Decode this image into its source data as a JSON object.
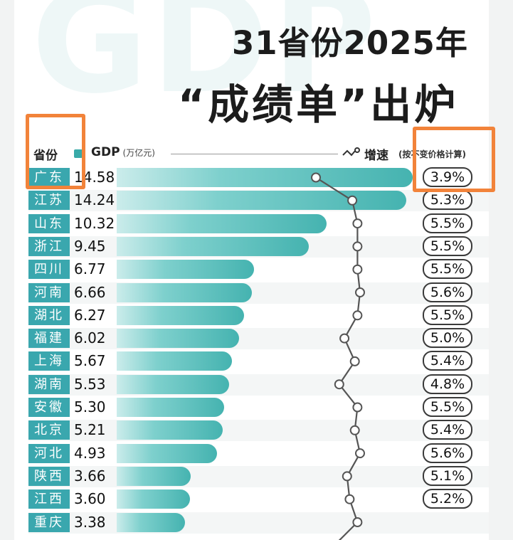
{
  "watermark": "GDP",
  "title": {
    "line1": "31省份2025年",
    "line2": "“成绩单”出炉"
  },
  "header": {
    "province_label": "省份",
    "gdp_label": "GDP",
    "gdp_unit": "(万亿元)",
    "growth_label": "增速",
    "growth_note": "(按不变价格计算)"
  },
  "colors": {
    "bar": "#45b3b0",
    "province_tag": "#3aa7ae",
    "highlight": "#f2833a"
  },
  "chart_data": {
    "type": "bar",
    "title": "31省份2025年“成绩单”出炉",
    "xlabel": "GDP(万亿元)",
    "ylabel": "省份",
    "categories": [
      "广东",
      "江苏",
      "山东",
      "浙江",
      "四川",
      "河南",
      "湖北",
      "福建",
      "上海",
      "湖南",
      "安徽",
      "北京",
      "河北",
      "陕西",
      "江西",
      "重庆"
    ],
    "series": [
      {
        "name": "GDP",
        "values": [
          14.58,
          14.24,
          10.32,
          9.45,
          6.77,
          6.66,
          6.27,
          6.02,
          5.67,
          5.53,
          5.3,
          5.21,
          4.93,
          3.66,
          3.6,
          3.38
        ]
      },
      {
        "name": "增速",
        "values": [
          3.9,
          5.3,
          5.5,
          5.5,
          5.5,
          5.6,
          5.5,
          5.0,
          5.4,
          4.8,
          5.5,
          5.4,
          5.6,
          5.1,
          5.2,
          5.5
        ]
      }
    ],
    "gdp_labels": [
      "14.58",
      "14.24",
      "10.32",
      "9.45",
      "6.77",
      "6.66",
      "6.27",
      "6.02",
      "5.67",
      "5.53",
      "5.30",
      "5.21",
      "4.93",
      "3.66",
      "3.60",
      "3.38"
    ],
    "growth_labels": [
      "3.9%",
      "5.3%",
      "5.5%",
      "5.5%",
      "5.5%",
      "5.6%",
      "5.5%",
      "5.0%",
      "5.4%",
      "4.8%",
      "5.5%",
      "5.4%",
      "5.6%",
      "5.1%",
      "5.2%",
      ""
    ]
  }
}
